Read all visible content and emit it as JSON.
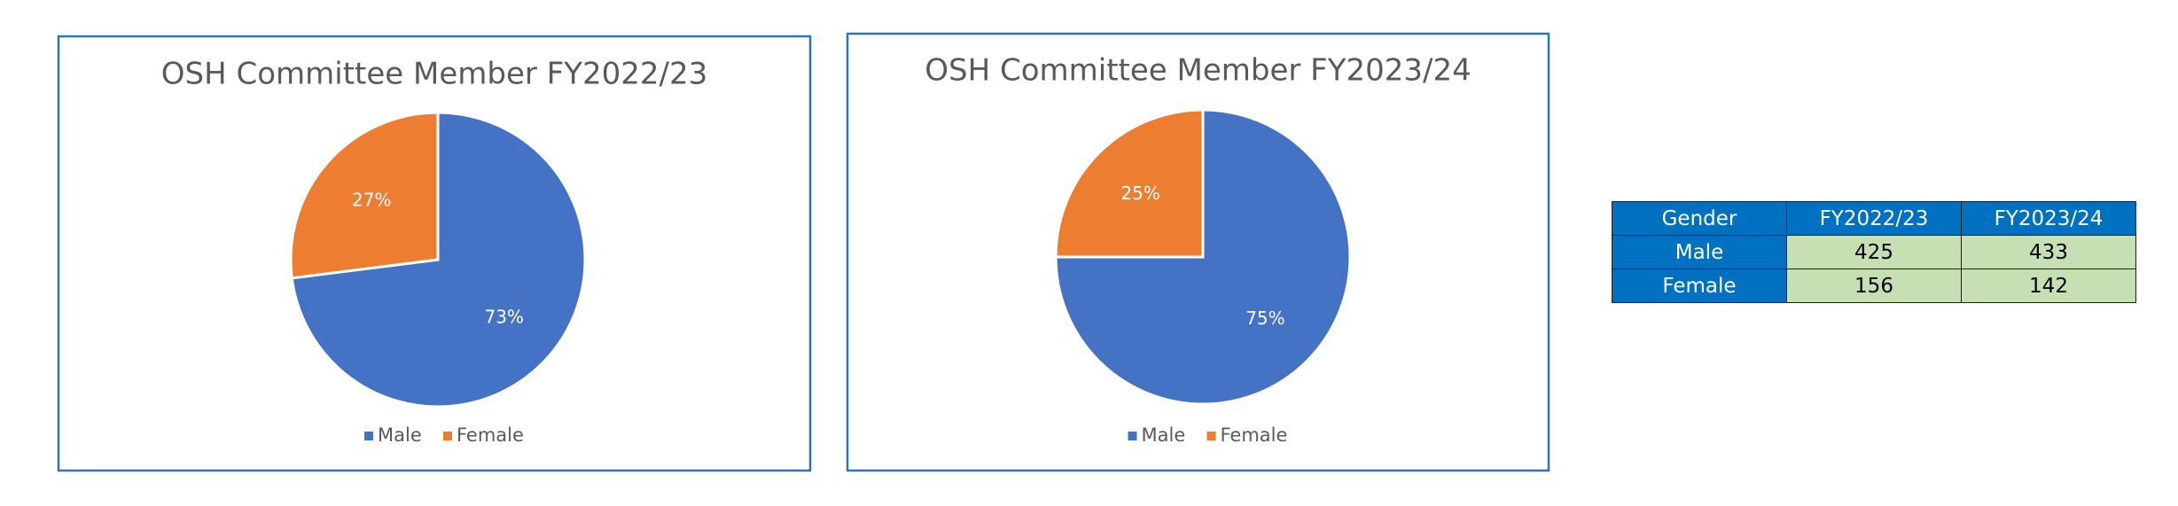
{
  "chart_data": [
    {
      "type": "pie",
      "title": "OSH Committee Member FY2022/23",
      "categories": [
        "Male",
        "Female"
      ],
      "values": [
        73,
        27
      ],
      "value_labels": [
        "73%",
        "27%"
      ],
      "colors": [
        "#4472c4",
        "#ed7d31"
      ],
      "legend": "bottom"
    },
    {
      "type": "pie",
      "title": "OSH Committee Member FY2023/24",
      "categories": [
        "Male",
        "Female"
      ],
      "values": [
        75,
        25
      ],
      "value_labels": [
        "75%",
        "25%"
      ],
      "colors": [
        "#4472c4",
        "#ed7d31"
      ],
      "legend": "bottom"
    }
  ],
  "table": {
    "header": [
      "Gender",
      "FY2022/23",
      "FY2023/24"
    ],
    "rows": [
      [
        "Male",
        425,
        433
      ],
      [
        "Female",
        156,
        142
      ]
    ]
  }
}
